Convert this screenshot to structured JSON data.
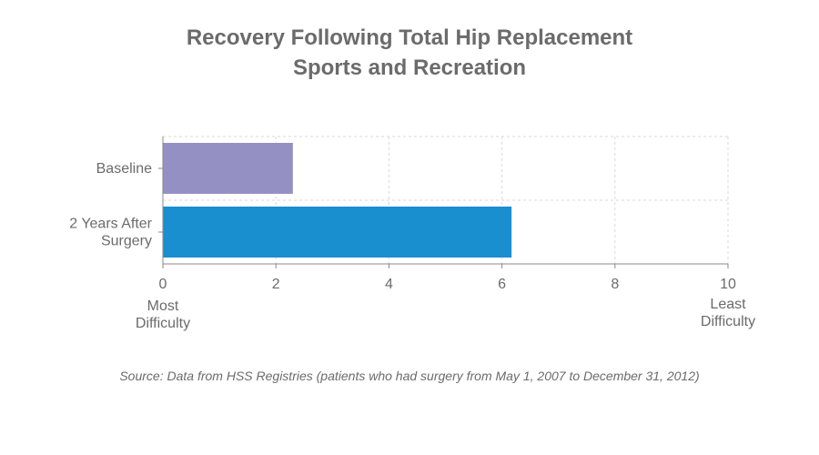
{
  "chart_data": {
    "type": "bar",
    "orientation": "horizontal",
    "title": [
      "Recovery Following Total Hip Replacement",
      "Sports and Recreation"
    ],
    "categories": [
      "Baseline",
      "2 Years After Surgery"
    ],
    "category_lines": [
      [
        "Baseline"
      ],
      [
        "2 Years After",
        "Surgery"
      ]
    ],
    "values": [
      2.3,
      6.17
    ],
    "bar_colors": [
      "#9590c4",
      "#1a8fd0"
    ],
    "xlim": [
      0,
      10
    ],
    "xticks": [
      0,
      2,
      4,
      6,
      8,
      10
    ],
    "x_end_labels": {
      "min": [
        "Most",
        "Difficulty"
      ],
      "max": [
        "Least",
        "Difficulty"
      ]
    },
    "grid": true,
    "legend": "none"
  },
  "source": "Source: Data from HSS Registries (patients who had surgery from May 1, 2007 to December 31, 2012)"
}
